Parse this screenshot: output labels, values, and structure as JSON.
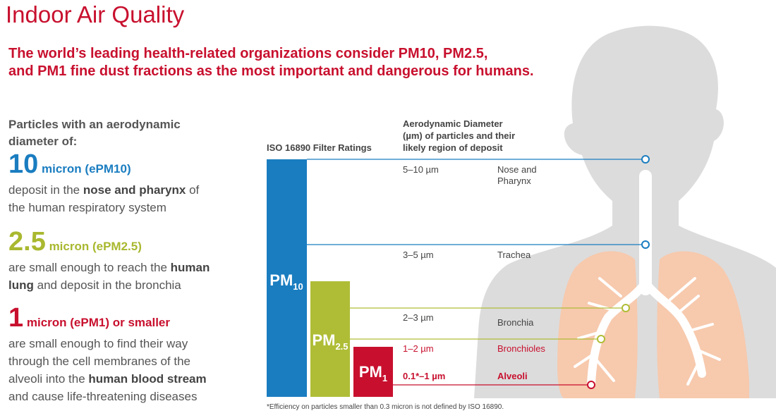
{
  "title": "Indoor Air Quality",
  "subtitle": [
    "The world’s leading health-related organizations consider PM10, PM2.5,",
    "and PM1 fine dust fractions as the most important and dangerous for humans."
  ],
  "intro": [
    "Particles with an aerodynamic",
    "diameter of:"
  ],
  "sections": [
    {
      "size": "10",
      "label": "micron (ePM10)",
      "lines": [
        [
          "deposit in the ",
          "nose and pharynx",
          " of"
        ],
        [
          "the human respiratory system"
        ]
      ]
    },
    {
      "size": "2.5",
      "label": "micron (ePM2.5)",
      "lines": [
        [
          "are small enough to reach the ",
          "human"
        ],
        [
          "",
          "lung",
          " and deposit in the bronchia"
        ]
      ]
    },
    {
      "size": "1",
      "label": "micron (ePM1) or smaller",
      "lines": [
        [
          "are small enough to find their way"
        ],
        [
          "through the cell membranes of the"
        ],
        [
          "alveoli into the ",
          "human blood stream"
        ],
        [
          "and cause life-threatening diseases"
        ]
      ]
    }
  ],
  "ratings_header": "ISO 16890 Filter Ratings",
  "diameter_header": [
    "Aerodynamic Diameter",
    "(µm) of particles and their",
    "likely region of deposit"
  ],
  "bars": [
    {
      "label": "PM",
      "sub": "10"
    },
    {
      "label": "PM",
      "sub": "2.5"
    },
    {
      "label": "PM",
      "sub": "1"
    }
  ],
  "rows": [
    {
      "size": "5–10 µm",
      "region": [
        "Nose and",
        "Pharynx"
      ]
    },
    {
      "size": "3–5 µm",
      "region": [
        "Trachea"
      ]
    },
    {
      "size": "2–3 µm",
      "region": [
        "Bronchia"
      ]
    },
    {
      "size": "1–2 µm",
      "region": [
        "Bronchioles"
      ]
    },
    {
      "size": "0.1*–1 µm",
      "region": [
        "Alveoli"
      ]
    }
  ],
  "footnote": "*Efficiency on particles smaller than 0.3 micron is not defined by ISO 16890."
}
